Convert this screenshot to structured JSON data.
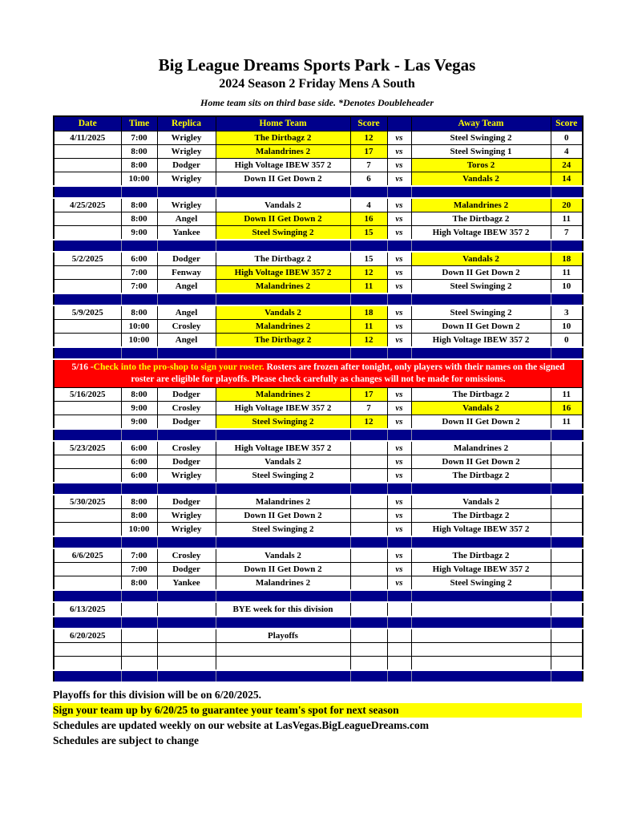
{
  "page": {
    "title": "Big League Dreams Sports Park - Las Vegas",
    "subtitle": "2024 Season 2 Friday Mens A South",
    "note": "Home team sits on third base side.  *Denotes Doubleheader"
  },
  "colors": {
    "navy": "#00008B",
    "highlight_yellow": "#FFFF00",
    "notice_red": "#FF0000"
  },
  "table": {
    "headers": [
      "Date",
      "Time",
      "Replica",
      "Home Team",
      "Score",
      "",
      "Away Team",
      "Score"
    ],
    "vs_label": "vs",
    "sections": [
      {
        "type": "games",
        "date": "4/11/2025",
        "games": [
          {
            "time": "7:00",
            "replica": "Wrigley",
            "home": "The Dirtbagz 2",
            "home_score": "12",
            "away": "Steel Swinging 2",
            "away_score": "0",
            "winner": "home"
          },
          {
            "time": "8:00",
            "replica": "Wrigley",
            "home": "Malandrines 2",
            "home_score": "17",
            "away": "Steel Swinging 1",
            "away_score": "4",
            "winner": "home"
          },
          {
            "time": "8:00",
            "replica": "Dodger",
            "home": "High Voltage IBEW 357 2",
            "home_score": "7",
            "away": "Toros 2",
            "away_score": "24",
            "winner": "away"
          },
          {
            "time": "10:00",
            "replica": "Wrigley",
            "home": "Down II Get Down 2",
            "home_score": "6",
            "away": "Vandals 2",
            "away_score": "14",
            "winner": "away"
          }
        ]
      },
      {
        "type": "separator"
      },
      {
        "type": "games",
        "date": "4/25/2025",
        "games": [
          {
            "time": "8:00",
            "replica": "Wrigley",
            "home": "Vandals 2",
            "home_score": "4",
            "away": "Malandrines 2",
            "away_score": "20",
            "winner": "away"
          },
          {
            "time": "8:00",
            "replica": "Angel",
            "home": "Down II Get Down 2",
            "home_score": "16",
            "away": "The Dirtbagz 2",
            "away_score": "11",
            "winner": "home"
          },
          {
            "time": "9:00",
            "replica": "Yankee",
            "home": "Steel Swinging 2",
            "home_score": "15",
            "away": "High Voltage IBEW 357 2",
            "away_score": "7",
            "winner": "home"
          }
        ]
      },
      {
        "type": "separator"
      },
      {
        "type": "games",
        "date": "5/2/2025",
        "games": [
          {
            "time": "6:00",
            "replica": "Dodger",
            "home": "The Dirtbagz 2",
            "home_score": "15",
            "away": "Vandals 2",
            "away_score": "18",
            "winner": "away"
          },
          {
            "time": "7:00",
            "replica": "Fenway",
            "home": "High Voltage IBEW 357 2",
            "home_score": "12",
            "away": "Down II Get Down 2",
            "away_score": "11",
            "winner": "home"
          },
          {
            "time": "7:00",
            "replica": "Angel",
            "home": "Malandrines 2",
            "home_score": "11",
            "away": "Steel Swinging 2",
            "away_score": "10",
            "winner": "home"
          }
        ]
      },
      {
        "type": "separator"
      },
      {
        "type": "games",
        "date": "5/9/2025",
        "games": [
          {
            "time": "8:00",
            "replica": "Angel",
            "home": "Vandals 2",
            "home_score": "18",
            "away": "Steel Swinging 2",
            "away_score": "3",
            "winner": "home"
          },
          {
            "time": "10:00",
            "replica": "Crosley",
            "home": "Malandrines 2",
            "home_score": "11",
            "away": "Down II Get Down 2",
            "away_score": "10",
            "winner": "home"
          },
          {
            "time": "10:00",
            "replica": "Angel",
            "home": "The Dirtbagz 2",
            "home_score": "12",
            "away": "High Voltage IBEW 357 2",
            "away_score": "0",
            "winner": "home"
          }
        ]
      },
      {
        "type": "separator"
      },
      {
        "type": "notice",
        "prefix": "5/16 -",
        "highlight": "Check into the pro-shop to sign your roster.",
        "rest": " Rosters are frozen after tonight, only players with their names on the signed roster are eligible for playoffs. Please check carefully as changes will not be made for omissions."
      },
      {
        "type": "games",
        "date": "5/16/2025",
        "games": [
          {
            "time": "8:00",
            "replica": "Dodger",
            "home": "Malandrines 2",
            "home_score": "17",
            "away": "The Dirtbagz 2",
            "away_score": "11",
            "winner": "home"
          },
          {
            "time": "9:00",
            "replica": "Crosley",
            "home": "High Voltage IBEW 357 2",
            "home_score": "7",
            "away": "Vandals 2",
            "away_score": "16",
            "winner": "away"
          },
          {
            "time": "9:00",
            "replica": "Dodger",
            "home": "Steel Swinging 2",
            "home_score": "12",
            "away": "Down II Get Down 2",
            "away_score": "11",
            "winner": "home"
          }
        ]
      },
      {
        "type": "separator"
      },
      {
        "type": "games",
        "date": "5/23/2025",
        "games": [
          {
            "time": "6:00",
            "replica": "Crosley",
            "home": "High Voltage IBEW 357 2",
            "home_score": "",
            "away": "Malandrines 2",
            "away_score": "",
            "winner": null
          },
          {
            "time": "6:00",
            "replica": "Dodger",
            "home": "Vandals 2",
            "home_score": "",
            "away": "Down II Get Down 2",
            "away_score": "",
            "winner": null
          },
          {
            "time": "6:00",
            "replica": "Wrigley",
            "home": "Steel Swinging 2",
            "home_score": "",
            "away": "The Dirtbagz 2",
            "away_score": "",
            "winner": null
          }
        ]
      },
      {
        "type": "separator"
      },
      {
        "type": "games",
        "date": "5/30/2025",
        "games": [
          {
            "time": "8:00",
            "replica": "Dodger",
            "home": "Malandrines 2",
            "home_score": "",
            "away": "Vandals 2",
            "away_score": "",
            "winner": null
          },
          {
            "time": "8:00",
            "replica": "Wrigley",
            "home": "Down II Get Down 2",
            "home_score": "",
            "away": "The Dirtbagz 2",
            "away_score": "",
            "winner": null
          },
          {
            "time": "10:00",
            "replica": "Wrigley",
            "home": "Steel Swinging 2",
            "home_score": "",
            "away": "High Voltage IBEW 357 2",
            "away_score": "",
            "winner": null
          }
        ]
      },
      {
        "type": "separator"
      },
      {
        "type": "games",
        "date": "6/6/2025",
        "games": [
          {
            "time": "7:00",
            "replica": "Crosley",
            "home": "Vandals 2",
            "home_score": "",
            "away": "The Dirtbagz 2",
            "away_score": "",
            "winner": null
          },
          {
            "time": "7:00",
            "replica": "Dodger",
            "home": "Down II Get Down 2",
            "home_score": "",
            "away": "High Voltage IBEW 357 2",
            "away_score": "",
            "winner": null
          },
          {
            "time": "8:00",
            "replica": "Yankee",
            "home": "Malandrines 2",
            "home_score": "",
            "away": "Steel Swinging 2",
            "away_score": "",
            "winner": null
          }
        ]
      },
      {
        "type": "separator"
      },
      {
        "type": "special",
        "date": "6/13/2025",
        "text": "BYE week for this division",
        "extra_empty_rows": 0
      },
      {
        "type": "separator"
      },
      {
        "type": "special",
        "date": "6/20/2025",
        "text": "Playoffs",
        "extra_empty_rows": 2
      },
      {
        "type": "separator"
      }
    ]
  },
  "footer": {
    "lines": [
      {
        "text": "Playoffs for this division will be on 6/20/2025.",
        "highlight": false
      },
      {
        "text": "Sign your team up by 6/20/25 to guarantee your team's spot for next season",
        "highlight": true
      },
      {
        "text": "Schedules are updated weekly on our website at LasVegas.BigLeagueDreams.com",
        "highlight": false
      },
      {
        "text": "Schedules are subject to change",
        "highlight": false
      }
    ]
  }
}
